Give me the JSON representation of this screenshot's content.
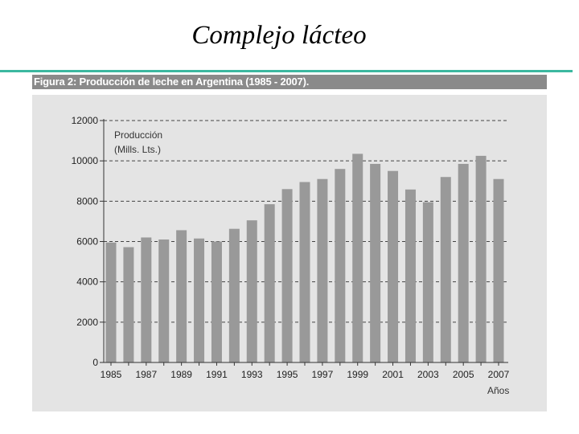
{
  "slide": {
    "title": "Complejo lácteo",
    "rule_color": "#3cb8a0"
  },
  "figure": {
    "caption": "Figura 2: Producción de leche en Argentina (1985 - 2007)."
  },
  "chart_data": {
    "type": "bar",
    "title": "",
    "ylabel_line1": "Producción",
    "ylabel_line2": "(Mills. Lts.)",
    "xlabel": "Años",
    "ylim": [
      0,
      12000
    ],
    "yticks": [
      0,
      2000,
      4000,
      6000,
      8000,
      10000,
      12000
    ],
    "xtick_labels": [
      "1985",
      "1987",
      "1989",
      "1991",
      "1993",
      "1995",
      "1997",
      "1999",
      "2001",
      "2003",
      "2005",
      "2007"
    ],
    "categories": [
      "1985",
      "1986",
      "1987",
      "1988",
      "1989",
      "1990",
      "1991",
      "1992",
      "1993",
      "1994",
      "1995",
      "1996",
      "1997",
      "1998",
      "1999",
      "2000",
      "2001",
      "2002",
      "2003",
      "2004",
      "2005",
      "2006",
      "2007"
    ],
    "values": [
      5950,
      5720,
      6200,
      6100,
      6560,
      6150,
      6000,
      6630,
      7050,
      7850,
      8600,
      8950,
      9100,
      9600,
      10350,
      9850,
      9500,
      8580,
      7950,
      9200,
      9850,
      10250,
      9100
    ],
    "grid": "dashed-horizontal",
    "bar_color": "#999999"
  }
}
